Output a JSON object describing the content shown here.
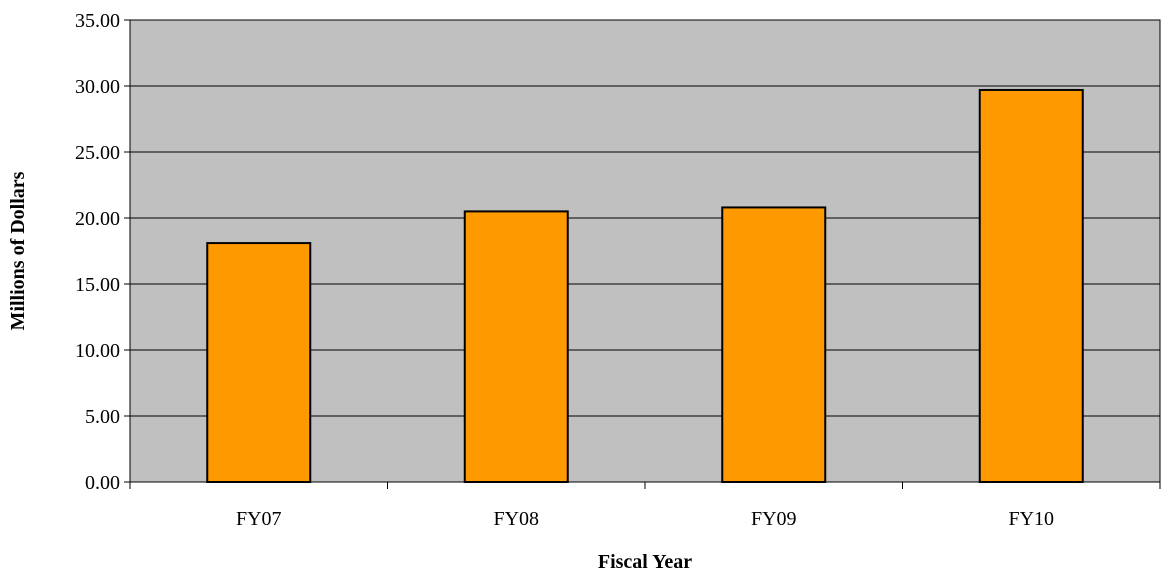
{
  "chart_data": {
    "type": "bar",
    "title": "",
    "categories": [
      "FY07",
      "FY08",
      "FY09",
      "FY10"
    ],
    "values": [
      18.1,
      20.5,
      20.8,
      29.7
    ],
    "xlabel": "Fiscal Year",
    "ylabel": "Millions of Dollars",
    "ylim": [
      0,
      35
    ],
    "yticks": [
      "0.00",
      "5.00",
      "10.00",
      "15.00",
      "20.00",
      "25.00",
      "30.00",
      "35.00"
    ],
    "grid": true,
    "legend": "none",
    "colors": {
      "plot_background": "#c0c0c0",
      "bar_fill": "#ff9900",
      "bar_stroke": "#000000",
      "gridline": "#000000"
    }
  }
}
